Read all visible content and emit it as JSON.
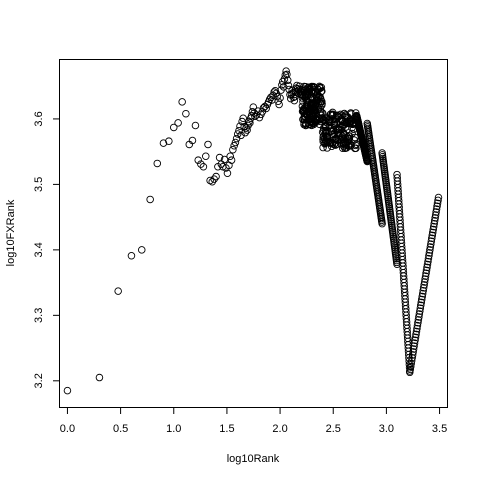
{
  "chart_data": {
    "type": "scatter",
    "title": "",
    "xlabel": "log10Rank",
    "ylabel": "log10FXRank",
    "xlim": [
      -0.07,
      3.57
    ],
    "ylim": [
      3.16,
      3.69
    ],
    "xticks": [
      "0.0",
      "0.5",
      "1.0",
      "1.5",
      "2.0",
      "2.5",
      "3.0",
      "3.5"
    ],
    "yticks": [
      "3.2",
      "3.3",
      "3.4",
      "3.5",
      "3.6"
    ],
    "grid": false,
    "marker": "open-circle",
    "series": [
      {
        "points": [
          [
            0.0,
            3.185
          ],
          [
            0.301,
            3.205
          ],
          [
            0.477,
            3.337
          ],
          [
            0.602,
            3.391
          ],
          [
            0.699,
            3.4
          ],
          [
            0.778,
            3.477
          ],
          [
            0.845,
            3.532
          ],
          [
            0.903,
            3.563
          ],
          [
            0.954,
            3.566
          ],
          [
            1.0,
            3.587
          ],
          [
            1.041,
            3.594
          ],
          [
            1.079,
            3.626
          ],
          [
            1.114,
            3.608
          ],
          [
            1.146,
            3.561
          ],
          [
            1.176,
            3.567
          ],
          [
            1.204,
            3.59
          ],
          [
            1.23,
            3.537
          ],
          [
            1.255,
            3.531
          ],
          [
            1.279,
            3.527
          ],
          [
            1.301,
            3.543
          ],
          [
            1.322,
            3.561
          ],
          [
            1.342,
            3.506
          ],
          [
            1.362,
            3.504
          ],
          [
            1.38,
            3.508
          ],
          [
            1.398,
            3.512
          ],
          [
            1.415,
            3.527
          ],
          [
            1.431,
            3.541
          ],
          [
            1.447,
            3.531
          ],
          [
            1.462,
            3.527
          ],
          [
            1.477,
            3.538
          ],
          [
            1.491,
            3.525
          ],
          [
            1.505,
            3.517
          ],
          [
            1.519,
            3.529
          ],
          [
            1.531,
            3.543
          ],
          [
            1.544,
            3.537
          ],
          [
            1.556,
            3.553
          ],
          [
            1.568,
            3.559
          ],
          [
            1.58,
            3.564
          ],
          [
            1.591,
            3.57
          ],
          [
            1.602,
            3.577
          ],
          [
            1.613,
            3.582
          ],
          [
            1.623,
            3.589
          ],
          [
            1.633,
            3.575
          ],
          [
            1.643,
            3.596
          ],
          [
            1.653,
            3.601
          ],
          [
            1.663,
            3.588
          ],
          [
            1.672,
            3.579
          ],
          [
            1.681,
            3.586
          ],
          [
            1.69,
            3.583
          ],
          [
            1.699,
            3.59
          ],
          [
            1.708,
            3.596
          ],
          [
            1.716,
            3.594
          ],
          [
            1.724,
            3.601
          ],
          [
            1.732,
            3.605
          ],
          [
            1.74,
            3.611
          ],
          [
            1.748,
            3.618
          ],
          [
            1.756,
            3.609
          ],
          [
            1.763,
            3.604
          ],
          [
            1.778,
            3.606
          ],
          [
            1.792,
            3.612
          ],
          [
            1.806,
            3.602
          ],
          [
            1.82,
            3.607
          ],
          [
            1.833,
            3.611
          ],
          [
            1.845,
            3.617
          ],
          [
            1.857,
            3.619
          ],
          [
            1.869,
            3.616
          ],
          [
            1.881,
            3.622
          ],
          [
            1.892,
            3.626
          ],
          [
            1.903,
            3.63
          ],
          [
            1.914,
            3.633
          ],
          [
            1.924,
            3.629
          ],
          [
            1.934,
            3.636
          ],
          [
            1.944,
            3.641
          ],
          [
            1.954,
            3.643
          ],
          [
            1.964,
            3.639
          ],
          [
            1.973,
            3.634
          ],
          [
            1.982,
            3.627
          ],
          [
            1.991,
            3.622
          ],
          [
            2.0,
            3.632
          ],
          [
            2.009,
            3.644
          ],
          [
            2.017,
            3.652
          ],
          [
            2.025,
            3.657
          ],
          [
            2.033,
            3.649
          ],
          [
            2.041,
            3.661
          ],
          [
            2.049,
            3.667
          ],
          [
            2.057,
            3.673
          ],
          [
            2.064,
            3.668
          ],
          [
            2.072,
            3.659
          ],
          [
            2.079,
            3.651
          ],
          [
            2.086,
            3.645
          ],
          [
            2.093,
            3.637
          ],
          [
            2.1,
            3.631
          ],
          [
            2.107,
            3.638
          ],
          [
            2.114,
            3.644
          ],
          [
            2.121,
            3.64
          ],
          [
            2.127,
            3.633
          ],
          [
            2.134,
            3.628
          ],
          [
            2.14,
            3.634
          ],
          [
            2.146,
            3.641
          ],
          [
            2.152,
            3.647
          ],
          [
            2.158,
            3.651
          ],
          [
            2.164,
            3.646
          ],
          [
            2.17,
            3.639
          ],
          [
            2.176,
            3.644
          ],
          [
            2.182,
            3.65
          ],
          [
            2.188,
            3.645
          ],
          [
            2.193,
            3.638
          ],
          [
            2.199,
            3.642
          ],
          [
            2.204,
            3.637
          ],
          [
            2.21,
            3.632
          ]
        ]
      }
    ],
    "dense_scatter": [
      {
        "x_from": 2.21,
        "x_to": 2.4,
        "y_min": 3.59,
        "y_max": 3.65
      },
      {
        "x_from": 2.4,
        "x_to": 2.72,
        "y_min": 3.555,
        "y_max": 3.61
      }
    ],
    "diagonal_bands": [
      {
        "x_from": 2.72,
        "y_from": 3.605,
        "x_to": 2.82,
        "y_to": 3.535
      },
      {
        "x_from": 2.82,
        "y_from": 3.593,
        "x_to": 2.96,
        "y_to": 3.44
      },
      {
        "x_from": 2.96,
        "y_from": 3.548,
        "x_to": 3.1,
        "y_to": 3.378
      },
      {
        "x_from": 3.1,
        "y_from": 3.515,
        "x_to": 3.22,
        "y_to": 3.215
      },
      {
        "x_from": 3.22,
        "y_from": 3.213,
        "x_to": 3.49,
        "y_to": 3.48
      }
    ]
  }
}
